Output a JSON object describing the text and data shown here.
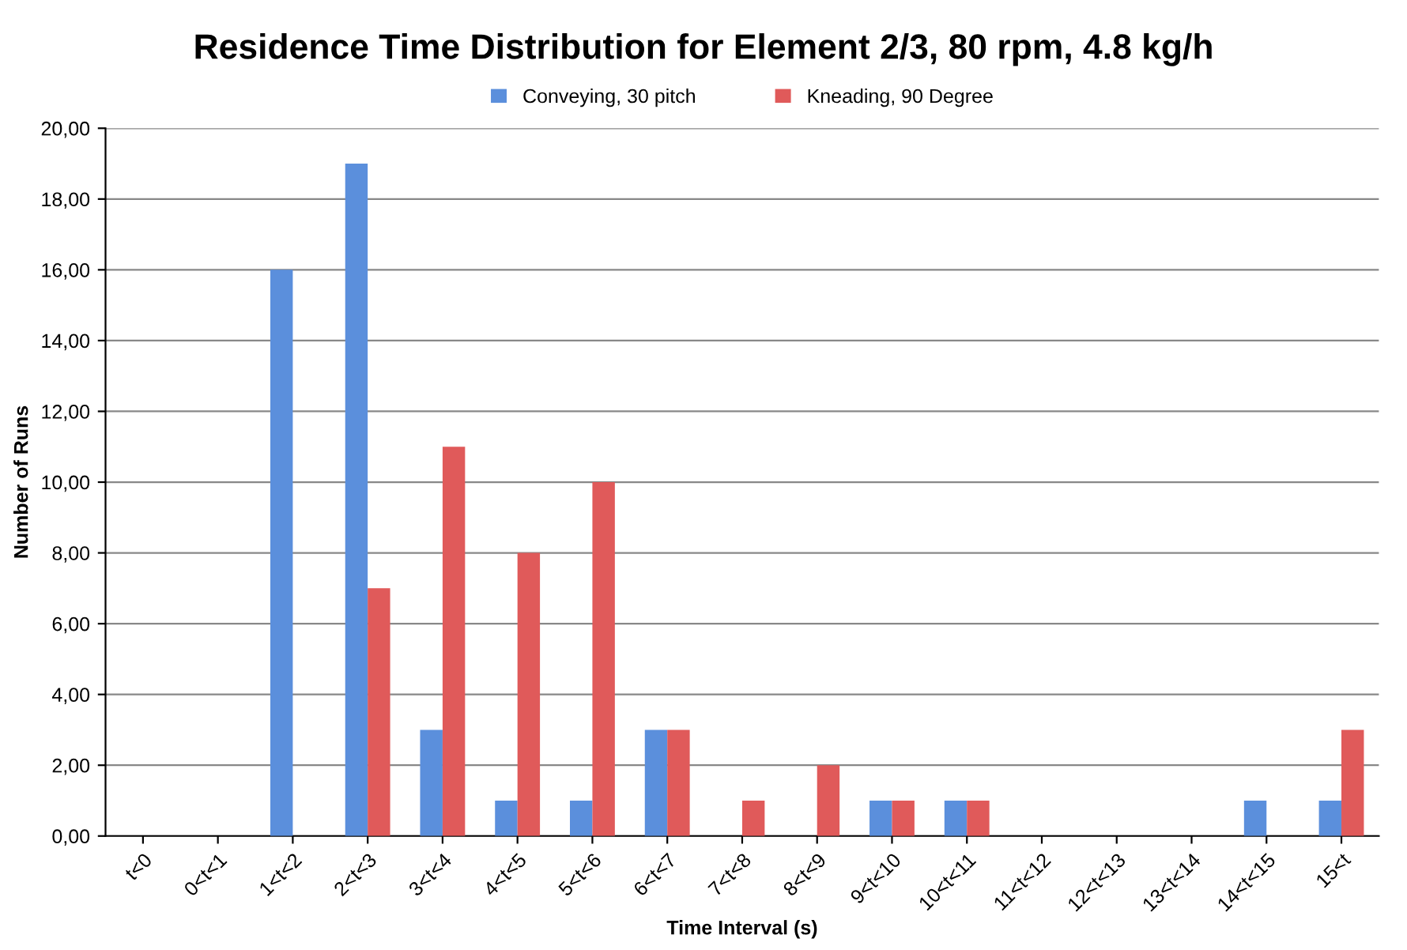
{
  "chart_data": {
    "type": "bar",
    "title": "Residence Time Distribution for Element 2/3, 80 rpm, 4.8 kg/h",
    "xlabel": "Time Interval (s)",
    "ylabel": "Number of Runs",
    "categories": [
      "t<0",
      "0<t<1",
      "1<t<2",
      "2<t<3",
      "3<t<4",
      "4<t<5",
      "5<t<6",
      "6<t<7",
      "7<t<8",
      "8<t<9",
      "9<t<10",
      "10<t<11",
      "11<t<12",
      "12<t<13",
      "13<t<14",
      "14<t<15",
      "15<t"
    ],
    "series": [
      {
        "name": "Conveying, 30 pitch",
        "color": "#5b8fdc",
        "values": [
          0,
          0,
          16,
          19,
          3,
          1,
          1,
          3,
          0,
          0,
          1,
          1,
          0,
          0,
          0,
          1,
          1
        ]
      },
      {
        "name": "Kneading, 90 Degree",
        "color": "#e05a5a",
        "values": [
          0,
          0,
          0,
          7,
          11,
          8,
          10,
          3,
          1,
          2,
          1,
          1,
          0,
          0,
          0,
          0,
          3
        ]
      }
    ],
    "ylim": [
      0,
      20
    ],
    "yticks": [
      {
        "value": 0,
        "label": "0,00"
      },
      {
        "value": 2,
        "label": "2,00"
      },
      {
        "value": 4,
        "label": "4,00"
      },
      {
        "value": 6,
        "label": "6,00"
      },
      {
        "value": 8,
        "label": "8,00"
      },
      {
        "value": 10,
        "label": "10,00"
      },
      {
        "value": 12,
        "label": "12,00"
      },
      {
        "value": 14,
        "label": "14,00"
      },
      {
        "value": 16,
        "label": "16,00"
      },
      {
        "value": 18,
        "label": "18,00"
      },
      {
        "value": 20,
        "label": "20,00"
      }
    ],
    "grid": "y",
    "legend": "top"
  }
}
